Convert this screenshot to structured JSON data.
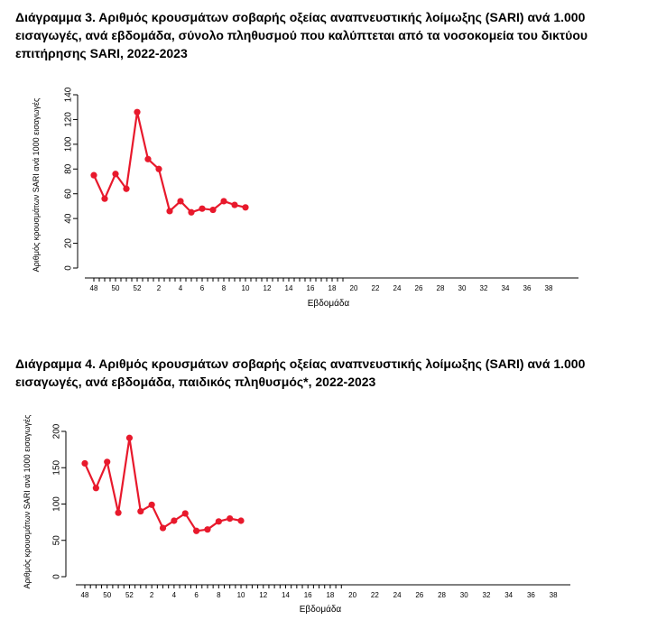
{
  "charts_meta": {
    "line_color": "#e8192c"
  },
  "chart_data": [
    {
      "type": "line",
      "title": "Διάγραμμα 3.  Αριθμός κρουσμάτων σοβαρής οξείας αναπνευστικής λοίμωξης (SARI) ανά 1.000 εισαγωγές, ανά εβδομάδα, σύνολο πληθυσμού που καλύπτεται από τα νοσοκομεία του δικτύου επιτήρησης SARI, 2022-2023",
      "xlabel": "Εβδομάδα",
      "ylabel": "Αριθμός κρουσμάτων SARI ανά 1000 εισαγωγές",
      "ylim": [
        0,
        140
      ],
      "yticks": [
        0,
        20,
        40,
        60,
        80,
        100,
        120,
        140
      ],
      "xtick_labels": [
        "48",
        "50",
        "52",
        "2",
        "4",
        "6",
        "8",
        "10",
        "12",
        "14",
        "16",
        "18",
        "20",
        "22",
        "24",
        "26",
        "28",
        "30",
        "32",
        "34",
        "36",
        "38"
      ],
      "x_weeks": [
        "48",
        "49",
        "50",
        "51",
        "52",
        "1",
        "2",
        "3",
        "4",
        "5",
        "6",
        "7",
        "8",
        "9",
        "10"
      ],
      "values": [
        75,
        56,
        76,
        64,
        126,
        88,
        80,
        46,
        54,
        45,
        48,
        47,
        54,
        51,
        49
      ],
      "grid": false
    },
    {
      "type": "line",
      "title": "Διάγραμμα 4.  Αριθμός κρουσμάτων σοβαρής οξείας αναπνευστικής λοίμωξης (SARI) ανά 1.000 εισαγωγές, ανά εβδομάδα, παιδικός πληθυσμός*, 2022-2023",
      "xlabel": "Εβδομάδα",
      "ylabel": "Αριθμός κρουσμάτων SARI ανά 1000 εισαγωγές",
      "ylim": [
        0,
        200
      ],
      "yticks": [
        0,
        50,
        100,
        150,
        200
      ],
      "xtick_labels": [
        "48",
        "50",
        "52",
        "2",
        "4",
        "6",
        "8",
        "10",
        "12",
        "14",
        "16",
        "18",
        "20",
        "22",
        "24",
        "26",
        "28",
        "30",
        "32",
        "34",
        "36",
        "38"
      ],
      "x_weeks": [
        "48",
        "49",
        "50",
        "51",
        "52",
        "1",
        "2",
        "3",
        "4",
        "5",
        "6",
        "7",
        "8",
        "9",
        "10"
      ],
      "values": [
        156,
        122,
        158,
        88,
        191,
        90,
        99,
        67,
        77,
        87,
        63,
        65,
        76,
        80,
        77
      ],
      "grid": false
    }
  ]
}
